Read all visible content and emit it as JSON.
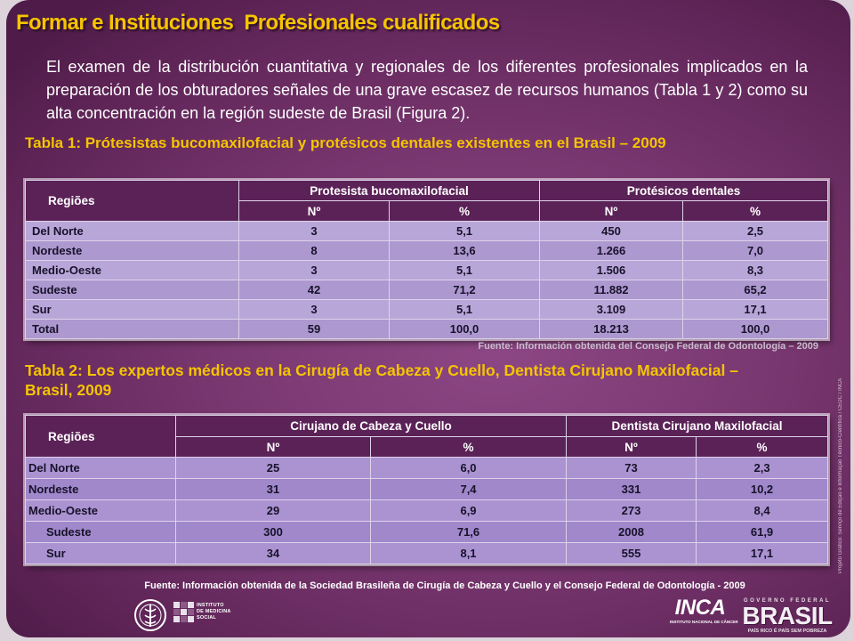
{
  "slide": {
    "title": "Formar e Instituciones  Profesionales cualificados",
    "intro": "El examen de la distribución cuantitativa y regionales de los diferentes profesionales implicados en la preparación de los obturadores señales de una grave escasez de recursos humanos (Tabla 1 y 2) como su alta concentración en la región sudeste de Brasil (Figura 2).",
    "credit": "Projeto Gráfico: Serviço de Edição e Informação Técnico-Científica / CEDC / INCA",
    "colors": {
      "background": "#7a3871",
      "title": "#f5c400",
      "caption": "#f5c400",
      "table_header": "#5b2257",
      "table_row": "#b9a6d9"
    }
  },
  "table1": {
    "caption": "Tabla 1: Prótesistas bucomaxilofacial y protésicos dentales existentes en el Brasil – 2009",
    "header": {
      "region": "Regiões",
      "groups": [
        "Protesista bucomaxilofacial",
        "Protésicos dentales"
      ],
      "sub": [
        "Nº",
        "%",
        "Nº",
        "%"
      ]
    },
    "rows": [
      {
        "region": "Del Norte",
        "values": [
          "3",
          "5,1",
          "450",
          "2,5"
        ]
      },
      {
        "region": "Nordeste",
        "values": [
          "8",
          "13,6",
          "1.266",
          "7,0"
        ]
      },
      {
        "region": "Medio-Oeste",
        "values": [
          "3",
          "5,1",
          "1.506",
          "8,3"
        ]
      },
      {
        "region": "Sudeste",
        "values": [
          "42",
          "71,2",
          "11.882",
          "65,2"
        ]
      },
      {
        "region": "Sur",
        "values": [
          "3",
          "5,1",
          "3.109",
          "17,1"
        ]
      },
      {
        "region": "Total",
        "values": [
          "59",
          "100,0",
          "18.213",
          "100,0"
        ]
      }
    ],
    "source": "Fuente: Información obtenida del Consejo Federal de Odontología – 2009"
  },
  "table2": {
    "caption": "Tabla 2: Los expertos médicos en la Cirugía de Cabeza y Cuello, Dentista Cirujano Maxilofacial – Brasil, 2009",
    "header": {
      "region": "Regiões",
      "groups": [
        "Cirujano de Cabeza y Cuello",
        "Dentista Cirujano Maxilofacial"
      ],
      "sub": [
        "Nº",
        "%",
        "Nº",
        "%"
      ]
    },
    "rows": [
      {
        "region": "Del Norte",
        "values": [
          "25",
          "6,0",
          "73",
          "2,3"
        ]
      },
      {
        "region": "Nordeste",
        "values": [
          "31",
          "7,4",
          "331",
          "10,2"
        ]
      },
      {
        "region": "Medio-Oeste",
        "values": [
          "29",
          "6,9",
          "273",
          "8,4"
        ]
      },
      {
        "region": "Sudeste",
        "values": [
          "300",
          "71,6",
          "2008",
          "61,9"
        ]
      },
      {
        "region": "Sur",
        "values": [
          "34",
          "8,1",
          "555",
          "17,1"
        ]
      }
    ],
    "source": "Fuente: Información obtenida de la Sociedad Brasileña de Cirugía de Cabeza y Cuello y el Consejo Federal de Odontología - 2009"
  },
  "footer": {
    "logos": {
      "ims_lines": [
        "INSTITUTO",
        "DE MEDICINA",
        "SOCIAL"
      ],
      "inca": "INCA",
      "inca_sub": "INSTITUTO NACIONAL DE CÂNCER",
      "brasil_top": "GOVERNO FEDERAL",
      "brasil": "BRASIL",
      "brasil_sub": "PAÍS RICO É PAÍS SEM POBREZA"
    }
  }
}
